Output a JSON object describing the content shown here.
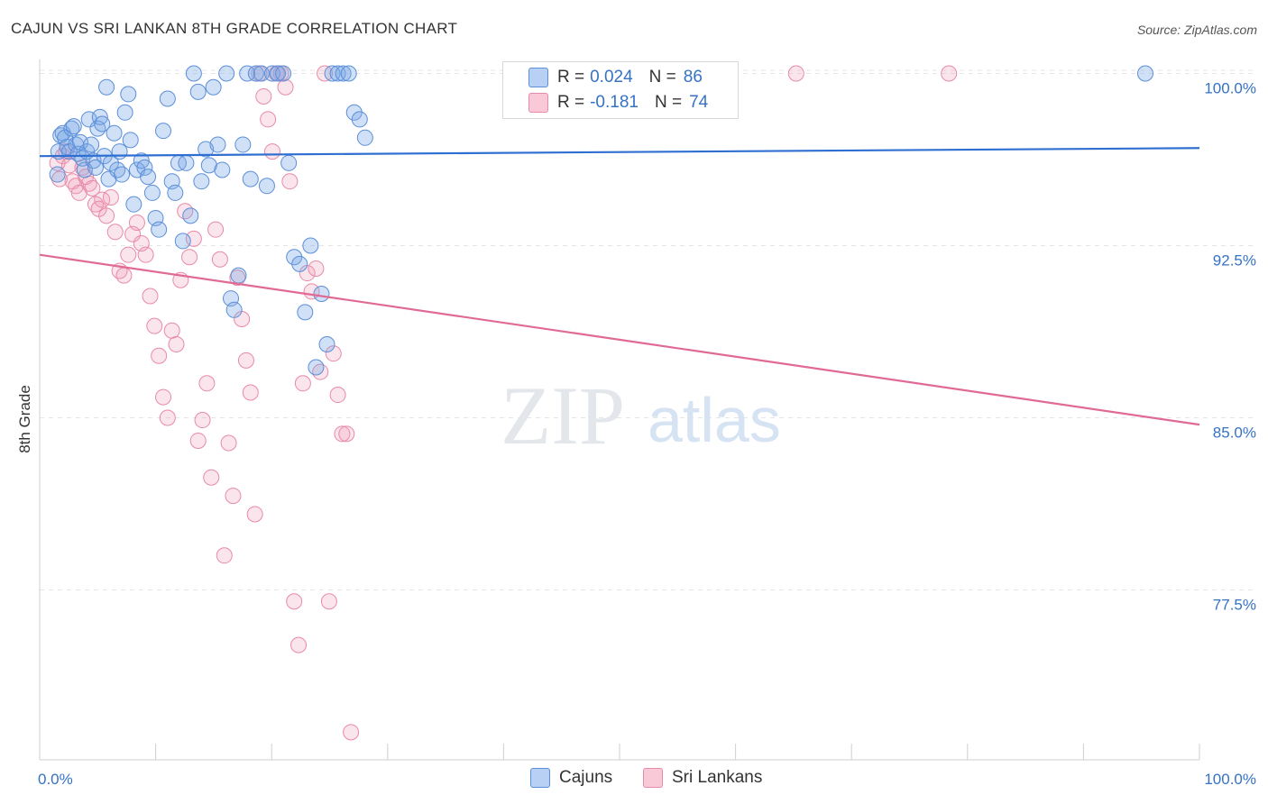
{
  "header": {
    "title": "CAJUN VS SRI LANKAN 8TH GRADE CORRELATION CHART",
    "source": "Source: ZipAtlas.com"
  },
  "legend_top": {
    "rows": [
      {
        "r_label": "R =",
        "r_value": "0.024",
        "n_label": "N =",
        "n_value": "86"
      },
      {
        "r_label": "R =",
        "r_value": "-0.181",
        "n_label": "N =",
        "n_value": "74"
      }
    ]
  },
  "legend_bottom": {
    "items": [
      {
        "label": "Cajuns"
      },
      {
        "label": "Sri Lankans"
      }
    ]
  },
  "watermark": {
    "zip": "ZIP",
    "atlas": "atlas"
  },
  "colors": {
    "blue_fill": "rgba(120,165,230,0.35)",
    "blue_stroke": "#5b8fd9",
    "blue_line": "#2f6fd1",
    "pink_fill": "rgba(240,150,180,0.25)",
    "pink_stroke": "#e88aa8",
    "pink_line": "#e06a95",
    "tick_label": "#3572c6"
  },
  "chart_data": {
    "type": "scatter",
    "title": "CAJUN VS SRI LANKAN 8TH GRADE CORRELATION CHART",
    "xlabel": "",
    "ylabel": "8th Grade",
    "xlim": [
      0,
      100
    ],
    "ylim": [
      70.5,
      101.5
    ],
    "x_tick_labels": [
      "0.0%",
      "100.0%"
    ],
    "y_ticks": [
      77.5,
      85.0,
      92.5,
      100.0
    ],
    "y_tick_labels": [
      "77.5%",
      "85.0%",
      "92.5%",
      "100.0%"
    ],
    "grid": true,
    "series": [
      {
        "name": "Cajuns",
        "r": 0.024,
        "n": 86,
        "trend": {
          "x": [
            0,
            100
          ],
          "y": [
            96.4,
            96.75
          ]
        },
        "points": [
          [
            0.3,
            95.6
          ],
          [
            0.4,
            96.6
          ],
          [
            0.6,
            97.3
          ],
          [
            0.8,
            97.4
          ],
          [
            1.0,
            97.2
          ],
          [
            1.2,
            96.8
          ],
          [
            1.4,
            96.6
          ],
          [
            1.6,
            97.6
          ],
          [
            1.8,
            97.7
          ],
          [
            2.0,
            96.9
          ],
          [
            2.2,
            96.5
          ],
          [
            2.4,
            97.0
          ],
          [
            2.6,
            96.3
          ],
          [
            2.8,
            95.8
          ],
          [
            3.0,
            96.6
          ],
          [
            3.2,
            98.0
          ],
          [
            3.4,
            96.9
          ],
          [
            3.6,
            96.2
          ],
          [
            3.8,
            95.9
          ],
          [
            4.0,
            97.6
          ],
          [
            4.2,
            98.1
          ],
          [
            4.4,
            97.8
          ],
          [
            4.6,
            96.4
          ],
          [
            4.8,
            99.4
          ],
          [
            5.0,
            95.4
          ],
          [
            5.2,
            96.1
          ],
          [
            5.5,
            97.4
          ],
          [
            5.8,
            95.8
          ],
          [
            6.0,
            96.6
          ],
          [
            6.2,
            95.6
          ],
          [
            6.5,
            98.3
          ],
          [
            6.8,
            99.1
          ],
          [
            7.0,
            97.1
          ],
          [
            7.3,
            94.3
          ],
          [
            7.6,
            95.8
          ],
          [
            8.0,
            96.2
          ],
          [
            8.3,
            95.9
          ],
          [
            8.6,
            95.5
          ],
          [
            9.0,
            94.8
          ],
          [
            9.3,
            93.7
          ],
          [
            9.6,
            93.2
          ],
          [
            10.0,
            97.5
          ],
          [
            10.4,
            98.9
          ],
          [
            10.8,
            95.3
          ],
          [
            11.1,
            94.8
          ],
          [
            11.4,
            96.1
          ],
          [
            11.8,
            92.7
          ],
          [
            12.1,
            96.1
          ],
          [
            12.5,
            93.8
          ],
          [
            12.8,
            100.0
          ],
          [
            13.2,
            99.2
          ],
          [
            13.5,
            95.3
          ],
          [
            13.9,
            96.7
          ],
          [
            14.2,
            96.0
          ],
          [
            14.6,
            99.4
          ],
          [
            15.0,
            96.9
          ],
          [
            15.4,
            95.8
          ],
          [
            15.8,
            100.0
          ],
          [
            16.2,
            90.2
          ],
          [
            16.5,
            89.7
          ],
          [
            16.9,
            91.2
          ],
          [
            17.3,
            96.9
          ],
          [
            17.7,
            100.0
          ],
          [
            18.0,
            95.4
          ],
          [
            18.5,
            100.0
          ],
          [
            19.0,
            100.0
          ],
          [
            19.5,
            95.1
          ],
          [
            20.0,
            100.0
          ],
          [
            20.5,
            100.0
          ],
          [
            21.0,
            100.0
          ],
          [
            21.5,
            96.1
          ],
          [
            22.0,
            92.0
          ],
          [
            22.5,
            91.7
          ],
          [
            23.0,
            89.6
          ],
          [
            23.5,
            92.5
          ],
          [
            24.0,
            87.2
          ],
          [
            24.5,
            90.4
          ],
          [
            25.0,
            88.2
          ],
          [
            25.5,
            100.0
          ],
          [
            26.0,
            100.0
          ],
          [
            26.5,
            100.0
          ],
          [
            27.0,
            100.0
          ],
          [
            27.5,
            98.3
          ],
          [
            28.0,
            98.0
          ],
          [
            28.5,
            97.2
          ],
          [
            100.0,
            100.0
          ]
        ]
      },
      {
        "name": "Sri Lankans",
        "r": -0.181,
        "n": 74,
        "trend": {
          "x": [
            0,
            100
          ],
          "y": [
            92.1,
            84.7
          ]
        },
        "points": [
          [
            0.3,
            96.1
          ],
          [
            0.5,
            95.4
          ],
          [
            0.8,
            96.4
          ],
          [
            1.1,
            96.6
          ],
          [
            1.4,
            96.0
          ],
          [
            1.7,
            95.3
          ],
          [
            2.0,
            95.1
          ],
          [
            2.3,
            94.8
          ],
          [
            2.6,
            95.9
          ],
          [
            2.9,
            95.5
          ],
          [
            3.2,
            95.2
          ],
          [
            3.5,
            95.0
          ],
          [
            3.8,
            94.3
          ],
          [
            4.1,
            94.1
          ],
          [
            4.4,
            94.5
          ],
          [
            4.8,
            93.8
          ],
          [
            5.2,
            94.6
          ],
          [
            5.6,
            93.1
          ],
          [
            6.0,
            91.4
          ],
          [
            6.4,
            91.2
          ],
          [
            6.8,
            92.1
          ],
          [
            7.2,
            93.0
          ],
          [
            7.6,
            93.5
          ],
          [
            8.0,
            92.6
          ],
          [
            8.4,
            92.1
          ],
          [
            8.8,
            90.3
          ],
          [
            9.2,
            89.0
          ],
          [
            9.6,
            87.7
          ],
          [
            10.0,
            85.9
          ],
          [
            10.4,
            85.0
          ],
          [
            10.8,
            88.8
          ],
          [
            11.2,
            88.2
          ],
          [
            11.6,
            91.0
          ],
          [
            12.0,
            94.0
          ],
          [
            12.4,
            92.0
          ],
          [
            12.8,
            92.8
          ],
          [
            13.2,
            84.0
          ],
          [
            13.6,
            84.9
          ],
          [
            14.0,
            86.5
          ],
          [
            14.4,
            82.4
          ],
          [
            14.8,
            93.2
          ],
          [
            15.2,
            91.9
          ],
          [
            15.6,
            79.0
          ],
          [
            16.0,
            83.9
          ],
          [
            16.4,
            81.6
          ],
          [
            16.8,
            91.1
          ],
          [
            17.2,
            89.3
          ],
          [
            17.6,
            87.5
          ],
          [
            18.0,
            86.1
          ],
          [
            18.4,
            80.8
          ],
          [
            18.8,
            100.0
          ],
          [
            19.2,
            99.0
          ],
          [
            19.6,
            98.0
          ],
          [
            20.0,
            96.6
          ],
          [
            20.4,
            100.0
          ],
          [
            20.8,
            100.0
          ],
          [
            21.2,
            99.4
          ],
          [
            21.6,
            95.3
          ],
          [
            22.0,
            77.0
          ],
          [
            22.4,
            75.1
          ],
          [
            22.8,
            86.5
          ],
          [
            23.2,
            91.3
          ],
          [
            23.6,
            90.5
          ],
          [
            24.0,
            91.5
          ],
          [
            24.4,
            87.0
          ],
          [
            24.8,
            100.0
          ],
          [
            25.2,
            77.0
          ],
          [
            25.6,
            87.8
          ],
          [
            26.0,
            86.0
          ],
          [
            26.4,
            84.3
          ],
          [
            26.8,
            84.3
          ],
          [
            27.2,
            71.3
          ],
          [
            68.0,
            100.0
          ],
          [
            82.0,
            100.0
          ]
        ]
      }
    ]
  }
}
